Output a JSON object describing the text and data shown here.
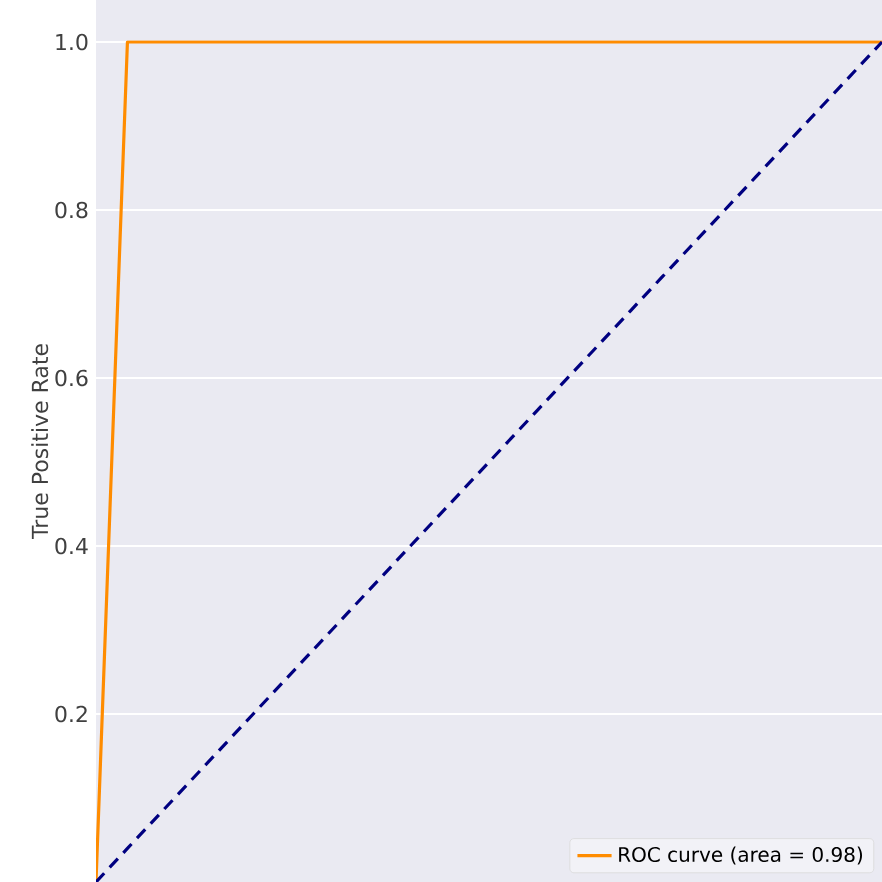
{
  "chart_data": {
    "type": "line",
    "ylabel": "True Positive Rate",
    "categories": [
      null,
      null,
      null,
      null,
      null,
      null,
      null,
      null,
      null,
      null,
      null,
      null,
      null,
      null,
      null,
      null,
      null,
      null,
      null,
      null,
      null,
      null,
      null,
      null,
      null,
      null
    ],
    "ylim": [
      0,
      1.05
    ],
    "yticks": [
      0.2,
      0.4,
      0.6,
      0.8,
      {
        "value": 1.0,
        "label": "1.0"
      }
    ],
    "tick_labels": "y",
    "grid": "y",
    "legend": "bottom right",
    "series": [
      {
        "name": "ROC curve (area = 0.98)",
        "color": "#ff8c00",
        "values": [
          0,
          1,
          1,
          1,
          1,
          1,
          1,
          1,
          1,
          1,
          1,
          1,
          1,
          1,
          1,
          1,
          1,
          1,
          1,
          1,
          1,
          1,
          1,
          1,
          1,
          1
        ],
        "line_style": "solid"
      },
      {
        "color": "#000080",
        "values": [
          0,
          0.04,
          0.08,
          0.12,
          0.16,
          0.2,
          0.24,
          0.28,
          0.32,
          0.36,
          0.4,
          0.44,
          0.48,
          0.52,
          0.56,
          0.6,
          0.64,
          0.68,
          0.72,
          0.76,
          0.8,
          0.84,
          0.88,
          0.92,
          0.96,
          1
        ],
        "line_style": "dashed"
      }
    ]
  }
}
